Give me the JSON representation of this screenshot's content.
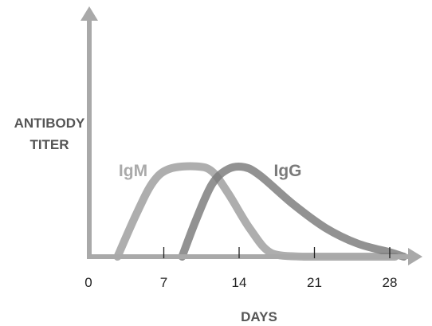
{
  "chart_data": {
    "type": "line",
    "title": "",
    "ylabel_lines": [
      "ANTIBODY",
      "TITER"
    ],
    "xlabel": "DAYS",
    "xlim": [
      0,
      28
    ],
    "x_ticks": [
      0,
      7,
      14,
      21,
      28
    ],
    "tick_labels": [
      "0",
      "7",
      "14",
      "21",
      "28"
    ],
    "y_ticks": "none",
    "grid": false,
    "series": [
      {
        "name": "IgM",
        "color": "#aaaaaa",
        "x": [
          2.7,
          4.5,
          6,
          7.5,
          10,
          11.5,
          13,
          15,
          17,
          20,
          24,
          28.5
        ],
        "y": [
          0,
          0.5,
          0.85,
          1.0,
          1.03,
          0.97,
          0.72,
          0.32,
          0.04,
          0,
          0,
          0
        ]
      },
      {
        "name": "IgG",
        "color": "#7a7a7a",
        "x": [
          8.7,
          10,
          11.5,
          13,
          14.5,
          16,
          19,
          22,
          25,
          28,
          29.3
        ],
        "y": [
          0,
          0.42,
          0.83,
          1.0,
          1.02,
          0.92,
          0.6,
          0.33,
          0.15,
          0.05,
          0
        ]
      }
    ],
    "annotations": []
  }
}
